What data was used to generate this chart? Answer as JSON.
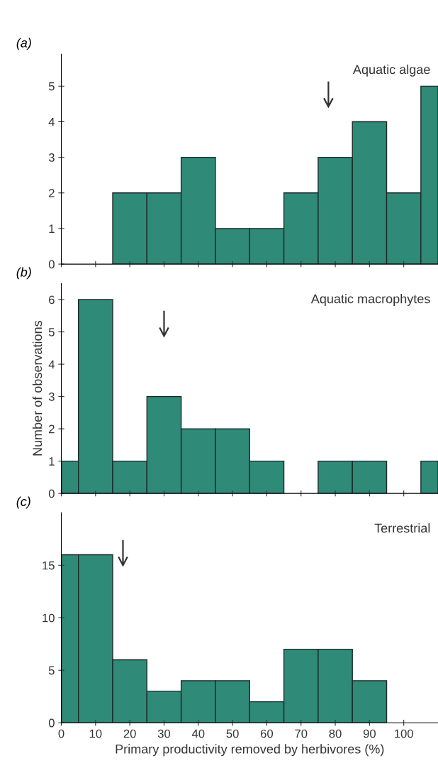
{
  "chart_data": [
    {
      "type": "histogram",
      "title": "(a)",
      "subtitle": "Aquatic algae",
      "bins": [
        15,
        25,
        35,
        45,
        55,
        65,
        75,
        85,
        95,
        105,
        110
      ],
      "values": [
        2,
        2,
        3,
        1,
        1,
        2,
        3,
        4,
        2,
        5
      ],
      "color": "#2f8a78",
      "xlim": [
        0,
        110
      ],
      "xticks": [
        0,
        10,
        20,
        30,
        40,
        50,
        60,
        70,
        80,
        90,
        100
      ],
      "ylim": [
        0,
        5.9
      ],
      "yticks": [
        0,
        1,
        2,
        3,
        4,
        5
      ],
      "tick_labels": "y",
      "ref_lines": [
        {
          "axis": "x",
          "value": 78
        }
      ]
    },
    {
      "type": "histogram",
      "title": "(b)",
      "subtitle": "Aquatic macrophytes",
      "ylabel": "Number of observations",
      "bins": [
        0,
        5,
        15,
        25,
        35,
        45,
        55,
        65,
        75,
        85,
        95,
        105,
        110
      ],
      "values": [
        1,
        6,
        1,
        3,
        2,
        2,
        1,
        0,
        1,
        1,
        0,
        1
      ],
      "color": "#2f8a78",
      "xlim": [
        0,
        110
      ],
      "xticks": [
        0,
        10,
        20,
        30,
        40,
        50,
        60,
        70,
        80,
        90,
        100
      ],
      "ylim": [
        0,
        6.5
      ],
      "yticks": [
        0,
        1,
        2,
        3,
        4,
        5,
        6
      ],
      "tick_labels": "y",
      "ref_lines": [
        {
          "axis": "x",
          "value": 30
        }
      ]
    },
    {
      "type": "histogram",
      "title": "(c)",
      "subtitle": "Terrestrial",
      "xlabel": "Primary productivity removed by herbivores (%)",
      "bins": [
        0,
        5,
        15,
        25,
        35,
        45,
        55,
        65,
        75,
        85,
        95
      ],
      "values": [
        16,
        16,
        6,
        3,
        4,
        4,
        2,
        7,
        7,
        4
      ],
      "color": "#2f8a78",
      "xlim": [
        0,
        110
      ],
      "xticks": [
        0,
        10,
        20,
        30,
        40,
        50,
        60,
        70,
        80,
        90,
        100
      ],
      "ylim": [
        0,
        20
      ],
      "yticks": [
        0,
        5,
        10,
        15
      ],
      "ref_lines": [
        {
          "axis": "x",
          "value": 18
        }
      ]
    }
  ]
}
